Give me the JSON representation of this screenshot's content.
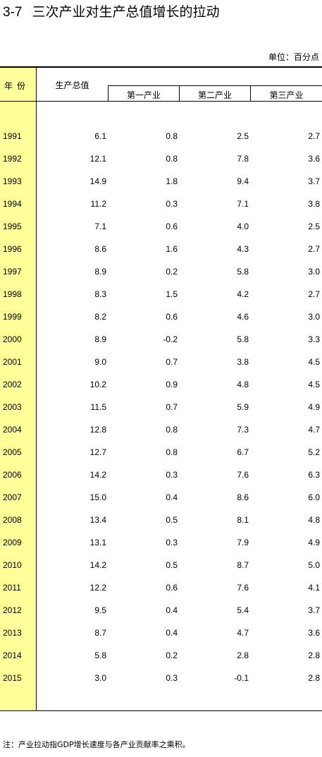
{
  "title": {
    "number": "3-7",
    "text": "三次产业对生产总值增长的拉动"
  },
  "unit_label": "单位：百分点",
  "headers": {
    "year": "年份",
    "gdp": "生产总值",
    "primary": "第一产业",
    "secondary": "第二产业",
    "tertiary": "第三产业"
  },
  "rows": [
    {
      "year": "1991",
      "gdp": "6.1",
      "primary": "0.8",
      "secondary": "2.5",
      "tertiary": "2.7"
    },
    {
      "year": "1992",
      "gdp": "12.1",
      "primary": "0.8",
      "secondary": "7.8",
      "tertiary": "3.6"
    },
    {
      "year": "1993",
      "gdp": "14.9",
      "primary": "1.8",
      "secondary": "9.4",
      "tertiary": "3.7"
    },
    {
      "year": "1994",
      "gdp": "11.2",
      "primary": "0.3",
      "secondary": "7.1",
      "tertiary": "3.8"
    },
    {
      "year": "1995",
      "gdp": "7.1",
      "primary": "0.6",
      "secondary": "4.0",
      "tertiary": "2.5"
    },
    {
      "year": "1996",
      "gdp": "8.6",
      "primary": "1.6",
      "secondary": "4.3",
      "tertiary": "2.7"
    },
    {
      "year": "1997",
      "gdp": "8.9",
      "primary": "0.2",
      "secondary": "5.8",
      "tertiary": "3.0"
    },
    {
      "year": "1998",
      "gdp": "8.3",
      "primary": "1.5",
      "secondary": "4.2",
      "tertiary": "2.7"
    },
    {
      "year": "1999",
      "gdp": "8.2",
      "primary": "0.6",
      "secondary": "4.6",
      "tertiary": "3.0"
    },
    {
      "year": "2000",
      "gdp": "8.9",
      "primary": "-0.2",
      "secondary": "5.8",
      "tertiary": "3.3"
    },
    {
      "year": "2001",
      "gdp": "9.0",
      "primary": "0.7",
      "secondary": "3.8",
      "tertiary": "4.5"
    },
    {
      "year": "2002",
      "gdp": "10.2",
      "primary": "0.9",
      "secondary": "4.8",
      "tertiary": "4.5"
    },
    {
      "year": "2003",
      "gdp": "11.5",
      "primary": "0.7",
      "secondary": "5.9",
      "tertiary": "4.9"
    },
    {
      "year": "2004",
      "gdp": "12.8",
      "primary": "0.8",
      "secondary": "7.3",
      "tertiary": "4.7"
    },
    {
      "year": "2005",
      "gdp": "12.7",
      "primary": "0.8",
      "secondary": "6.7",
      "tertiary": "5.2"
    },
    {
      "year": "2006",
      "gdp": "14.2",
      "primary": "0.3",
      "secondary": "7.6",
      "tertiary": "6.3"
    },
    {
      "year": "2007",
      "gdp": "15.0",
      "primary": "0.4",
      "secondary": "8.6",
      "tertiary": "6.0"
    },
    {
      "year": "2008",
      "gdp": "13.4",
      "primary": "0.5",
      "secondary": "8.1",
      "tertiary": "4.8"
    },
    {
      "year": "2009",
      "gdp": "13.1",
      "primary": "0.3",
      "secondary": "7.9",
      "tertiary": "4.9"
    },
    {
      "year": "2010",
      "gdp": "14.2",
      "primary": "0.5",
      "secondary": "8.7",
      "tertiary": "5.0"
    },
    {
      "year": "2011",
      "gdp": "12.2",
      "primary": "0.6",
      "secondary": "7.6",
      "tertiary": "4.1"
    },
    {
      "year": "2012",
      "gdp": "9.5",
      "primary": "0.4",
      "secondary": "5.4",
      "tertiary": "3.7"
    },
    {
      "year": "2013",
      "gdp": "8.7",
      "primary": "0.4",
      "secondary": "4.7",
      "tertiary": "3.6"
    },
    {
      "year": "2014",
      "gdp": "5.8",
      "primary": "0.2",
      "secondary": "2.8",
      "tertiary": "2.8"
    },
    {
      "year": "2015",
      "gdp": "3.0",
      "primary": "0.3",
      "secondary": "-0.1",
      "tertiary": "2.8"
    }
  ],
  "note": "注：产业拉动指GDP增长速度与各产业贡献率之乘积。",
  "colors": {
    "year_column_bg": "#ffff99",
    "rule": "#000000"
  }
}
